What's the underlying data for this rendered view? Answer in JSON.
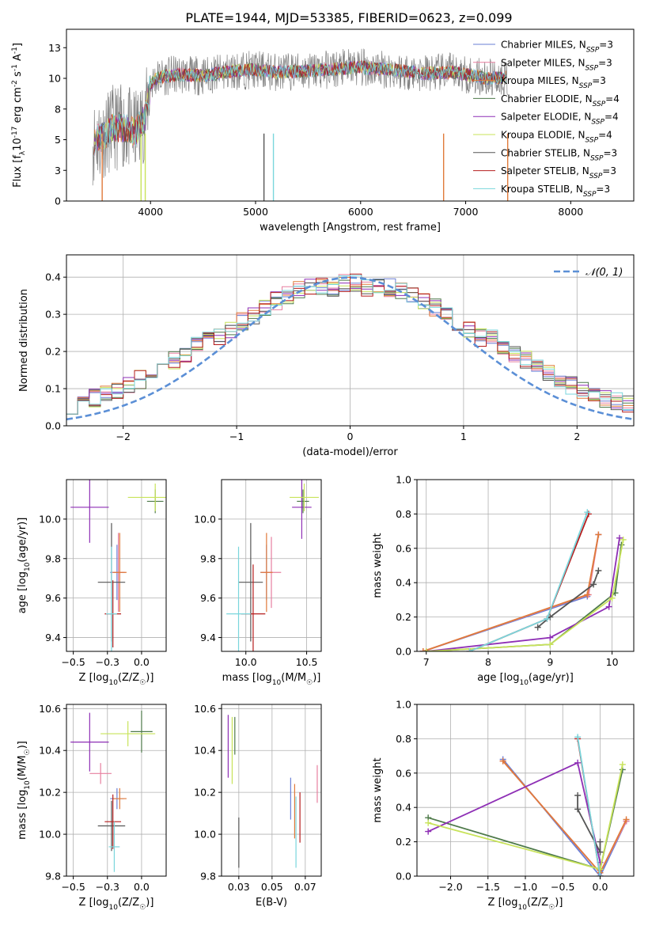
{
  "figure_title": "PLATE=1944, MJD=53385, FIBERID=0623, z=0.099",
  "colors": {
    "Chabrier MILES": "#6a7fd6",
    "Salpeter MILES": "#e77f9f",
    "Kroupa MILES": "#e07a3a",
    "Chabrier ELODIE": "#4e7a4a",
    "Salpeter ELODIE": "#8e2fb5",
    "Kroupa ELODIE": "#c8e35a",
    "Chabrier STELIB": "#555555",
    "Salpeter STELIB": "#b51d1d",
    "Kroupa STELIB": "#7ad6dc",
    "gray_spectrum": "#808080",
    "normal_curve": "#5b8fd6",
    "grid": "#b0b0b0"
  },
  "chart_data": [
    {
      "id": "spectrum",
      "type": "line",
      "xlabel": "wavelength [Angstrom, rest frame]",
      "ylabel": "Flux [f_λ10^-17 erg cm^-2 s^-1 A^-1]",
      "xlim": [
        3200,
        8600
      ],
      "ylim": [
        0,
        14
      ],
      "xticks": [
        4000,
        5000,
        6000,
        7000,
        8000
      ],
      "yticks": [
        0.0,
        2.5,
        5.0,
        7.5,
        10.0,
        12.5
      ],
      "grid": false,
      "legend": "right",
      "envelope": {
        "x": [
          3450,
          3550,
          3650,
          3750,
          3850,
          3950,
          4000,
          4050,
          4150,
          4300,
          4500,
          4800,
          5000,
          5200,
          5500,
          5800,
          6000,
          6300,
          6600,
          6900,
          7200,
          7400
        ],
        "y": [
          4.8,
          5.3,
          6.0,
          6.0,
          5.6,
          6.8,
          9.5,
          10.0,
          10.2,
          10.3,
          10.2,
          10.6,
          10.7,
          10.5,
          10.6,
          10.8,
          10.9,
          10.7,
          10.4,
          10.5,
          10.0,
          10.1
        ]
      },
      "series": [
        {
          "name": "Chabrier MILES, N_SSP=3"
        },
        {
          "name": "Salpeter MILES, N_SSP=3"
        },
        {
          "name": "Kroupa MILES, N_SSP=3"
        },
        {
          "name": "Chabrier ELODIE, N_SSP=4"
        },
        {
          "name": "Salpeter ELODIE, N_SSP=4"
        },
        {
          "name": "Kroupa ELODIE, N_SSP=4"
        },
        {
          "name": "Chabrier STELIB, N_SSP=3"
        },
        {
          "name": "Salpeter STELIB, N_SSP=3"
        },
        {
          "name": "Kroupa STELIB, N_SSP=3"
        }
      ]
    },
    {
      "id": "residuals",
      "type": "line",
      "xlabel": "(data-model)/error",
      "ylabel": "Normed distribution",
      "xlim": [
        -2.5,
        2.5
      ],
      "ylim": [
        0,
        0.46
      ],
      "xticks": [
        -2,
        -1,
        0,
        1,
        2
      ],
      "yticks": [
        0.0,
        0.1,
        0.2,
        0.3,
        0.4
      ],
      "grid": true,
      "legend": "top-right",
      "legend_label": "𝒩(0, 1)",
      "normal_curve": {
        "mean": 0,
        "sigma": 1
      }
    },
    {
      "id": "age_vs_Z",
      "type": "scatter",
      "xlabel": "Z [log10(Z/Z☉)]",
      "ylabel": "age [log10(age/yr)]",
      "xlim": [
        -0.55,
        0.18
      ],
      "ylim": [
        9.33,
        10.2
      ],
      "xticks": [
        -0.5,
        -0.25,
        0.0
      ],
      "yticks": [
        9.4,
        9.6,
        9.8,
        10.0
      ],
      "grid": true,
      "points": [
        {
          "model": "Chabrier MILES",
          "x": -0.18,
          "y": 9.73,
          "xerr": 0.05,
          "yerr": 0.14
        },
        {
          "model": "Salpeter MILES",
          "x": -0.17,
          "y": 9.73,
          "xerr": 0.05,
          "yerr": 0.2
        },
        {
          "model": "Kroupa MILES",
          "x": -0.16,
          "y": 9.73,
          "xerr": 0.05,
          "yerr": 0.2
        },
        {
          "model": "Chabrier ELODIE",
          "x": 0.1,
          "y": 10.09,
          "xerr": 0.06,
          "yerr": 0.06
        },
        {
          "model": "Salpeter ELODIE",
          "x": -0.38,
          "y": 10.06,
          "xerr": 0.14,
          "yerr": 0.18
        },
        {
          "model": "Kroupa ELODIE",
          "x": 0.1,
          "y": 10.11,
          "xerr": 0.2,
          "yerr": 0.07
        },
        {
          "model": "Chabrier STELIB",
          "x": -0.22,
          "y": 9.68,
          "xerr": 0.1,
          "yerr": 0.3
        },
        {
          "model": "Salpeter STELIB",
          "x": -0.21,
          "y": 9.52,
          "xerr": 0.06,
          "yerr": 0.17
        },
        {
          "model": "Kroupa STELIB",
          "x": -0.22,
          "y": 9.52,
          "xerr": 0.04,
          "yerr": 0.34
        }
      ]
    },
    {
      "id": "age_vs_mass",
      "type": "scatter",
      "xlabel": "mass [log10(M/M☉)]",
      "ylabel": "",
      "xlim": [
        9.8,
        10.62
      ],
      "ylim": [
        9.33,
        10.2
      ],
      "xticks": [
        10.0,
        10.5
      ],
      "yticks": [
        9.4,
        9.6,
        9.8,
        10.0
      ],
      "grid": true,
      "points": [
        {
          "model": "Chabrier MILES",
          "x": 10.17,
          "y": 9.73,
          "xerr": 0.05,
          "yerr": 0.14
        },
        {
          "model": "Salpeter MILES",
          "x": 10.21,
          "y": 9.73,
          "xerr": 0.08,
          "yerr": 0.18
        },
        {
          "model": "Kroupa MILES",
          "x": 10.17,
          "y": 9.73,
          "xerr": 0.05,
          "yerr": 0.2
        },
        {
          "model": "Chabrier ELODIE",
          "x": 10.47,
          "y": 10.09,
          "xerr": 0.05,
          "yerr": 0.06
        },
        {
          "model": "Salpeter ELODIE",
          "x": 10.46,
          "y": 10.06,
          "xerr": 0.08,
          "yerr": 0.16
        },
        {
          "model": "Kroupa ELODIE",
          "x": 10.48,
          "y": 10.11,
          "xerr": 0.12,
          "yerr": 0.07
        },
        {
          "model": "Chabrier STELIB",
          "x": 10.04,
          "y": 9.68,
          "xerr": 0.1,
          "yerr": 0.3
        },
        {
          "model": "Salpeter STELIB",
          "x": 10.06,
          "y": 9.52,
          "xerr": 0.1,
          "yerr": 0.25
        },
        {
          "model": "Kroupa STELIB",
          "x": 9.94,
          "y": 9.52,
          "xerr": 0.1,
          "yerr": 0.34
        }
      ]
    },
    {
      "id": "mass_weight_vs_age",
      "type": "line",
      "xlabel": "age [log10(age/yr)]",
      "ylabel": "mass weight",
      "xlim": [
        6.85,
        10.35
      ],
      "ylim": [
        0,
        1.0
      ],
      "xticks": [
        7,
        8,
        9,
        10
      ],
      "yticks": [
        0.0,
        0.2,
        0.4,
        0.6,
        0.8,
        1.0
      ],
      "grid": true,
      "series": [
        {
          "model": "Chabrier MILES",
          "points": [
            [
              6.95,
              0.0
            ],
            [
              9.6,
              0.32
            ],
            [
              9.78,
              0.68
            ]
          ]
        },
        {
          "model": "Salpeter MILES",
          "points": [
            [
              6.95,
              0.0
            ],
            [
              9.62,
              0.33
            ],
            [
              9.78,
              0.68
            ]
          ]
        },
        {
          "model": "Kroupa MILES",
          "points": [
            [
              6.95,
              0.0
            ],
            [
              9.6,
              0.33
            ],
            [
              9.78,
              0.68
            ]
          ]
        },
        {
          "model": "Chabrier ELODIE",
          "points": [
            [
              7.0,
              0.0
            ],
            [
              9.0,
              0.04
            ],
            [
              10.05,
              0.34
            ],
            [
              10.15,
              0.62
            ]
          ]
        },
        {
          "model": "Salpeter ELODIE",
          "points": [
            [
              7.0,
              0.0
            ],
            [
              9.0,
              0.08
            ],
            [
              9.95,
              0.26
            ],
            [
              10.12,
              0.66
            ]
          ]
        },
        {
          "model": "Kroupa ELODIE",
          "points": [
            [
              7.0,
              0.0
            ],
            [
              9.0,
              0.04
            ],
            [
              10.0,
              0.31
            ],
            [
              10.18,
              0.65
            ]
          ]
        },
        {
          "model": "Chabrier STELIB",
          "points": [
            [
              8.8,
              0.14
            ],
            [
              9.0,
              0.2
            ],
            [
              9.7,
              0.39
            ],
            [
              9.78,
              0.47
            ]
          ]
        },
        {
          "model": "Salpeter STELIB",
          "points": [
            [
              7.7,
              0.0
            ],
            [
              8.95,
              0.19
            ],
            [
              9.62,
              0.8
            ]
          ]
        },
        {
          "model": "Kroupa STELIB",
          "points": [
            [
              7.7,
              0.0
            ],
            [
              8.95,
              0.19
            ],
            [
              9.6,
              0.81
            ]
          ]
        }
      ]
    },
    {
      "id": "mass_vs_Z",
      "type": "scatter",
      "xlabel": "Z [log10(Z/Z☉)]",
      "ylabel": "mass [log10(M/M☉)]",
      "xlim": [
        -0.55,
        0.18
      ],
      "ylim": [
        9.8,
        10.62
      ],
      "xticks": [
        -0.5,
        -0.25,
        0.0
      ],
      "yticks": [
        9.8,
        10.0,
        10.2,
        10.4,
        10.6
      ],
      "grid": true,
      "points": [
        {
          "model": "Chabrier MILES",
          "x": -0.18,
          "y": 10.17,
          "xerr": 0.05,
          "yerr": 0.05
        },
        {
          "model": "Salpeter MILES",
          "x": -0.3,
          "y": 10.29,
          "xerr": 0.08,
          "yerr": 0.05
        },
        {
          "model": "Kroupa MILES",
          "x": -0.16,
          "y": 10.17,
          "xerr": 0.05,
          "yerr": 0.05
        },
        {
          "model": "Chabrier ELODIE",
          "x": 0.0,
          "y": 10.49,
          "xerr": 0.08,
          "yerr": 0.1
        },
        {
          "model": "Salpeter ELODIE",
          "x": -0.38,
          "y": 10.44,
          "xerr": 0.14,
          "yerr": 0.14
        },
        {
          "model": "Kroupa ELODIE",
          "x": -0.1,
          "y": 10.48,
          "xerr": 0.2,
          "yerr": 0.06
        },
        {
          "model": "Chabrier STELIB",
          "x": -0.22,
          "y": 10.04,
          "xerr": 0.1,
          "yerr": 0.12
        },
        {
          "model": "Salpeter STELIB",
          "x": -0.21,
          "y": 10.06,
          "xerr": 0.06,
          "yerr": 0.13
        },
        {
          "model": "Kroupa STELIB",
          "x": -0.2,
          "y": 9.94,
          "xerr": 0.04,
          "yerr": 0.12
        }
      ]
    },
    {
      "id": "mass_vs_EBV",
      "type": "scatter",
      "xlabel": "E(B-V)",
      "ylabel": "",
      "xlim": [
        0.012,
        0.087
      ],
      "ylim": [
        9.8,
        10.62
      ],
      "xticks": [
        0.025,
        0.05,
        0.075
      ],
      "yticks": [
        9.8,
        10.0,
        10.2,
        10.4,
        10.6
      ],
      "grid": true,
      "points": [
        {
          "model": "Chabrier MILES",
          "x": 0.064,
          "y": 10.17,
          "yerr": 0.1
        },
        {
          "model": "Salpeter MILES",
          "x": 0.084,
          "y": 10.24,
          "yerr": 0.09
        },
        {
          "model": "Kroupa MILES",
          "x": 0.067,
          "y": 10.11,
          "yerr": 0.13
        },
        {
          "model": "Chabrier ELODIE",
          "x": 0.022,
          "y": 10.47,
          "yerr": 0.09
        },
        {
          "model": "Salpeter ELODIE",
          "x": 0.017,
          "y": 10.42,
          "yerr": 0.15
        },
        {
          "model": "Kroupa ELODIE",
          "x": 0.02,
          "y": 10.4,
          "yerr": 0.16
        },
        {
          "model": "Chabrier STELIB",
          "x": 0.025,
          "y": 9.96,
          "yerr": 0.12
        },
        {
          "model": "Salpeter STELIB",
          "x": 0.071,
          "y": 10.08,
          "yerr": 0.12
        },
        {
          "model": "Kroupa STELIB",
          "x": 0.068,
          "y": 10.01,
          "yerr": 0.17
        }
      ]
    },
    {
      "id": "mass_weight_vs_Z",
      "type": "line",
      "xlabel": "Z [log10(Z/Z☉)]",
      "ylabel": "mass weight",
      "xlim": [
        -2.45,
        0.45
      ],
      "ylim": [
        0,
        1.0
      ],
      "xticks": [
        -2.0,
        -1.5,
        -1.0,
        -0.5,
        0.0
      ],
      "yticks": [
        0.0,
        0.2,
        0.4,
        0.6,
        0.8,
        1.0
      ],
      "grid": true,
      "series": [
        {
          "model": "Chabrier MILES",
          "points": [
            [
              -1.3,
              0.68
            ],
            [
              0.0,
              0.0
            ],
            [
              0.35,
              0.32
            ]
          ]
        },
        {
          "model": "Salpeter MILES",
          "points": [
            [
              -1.3,
              0.67
            ],
            [
              0.0,
              0.02
            ],
            [
              0.35,
              0.32
            ]
          ]
        },
        {
          "model": "Kroupa MILES",
          "points": [
            [
              -1.3,
              0.67
            ],
            [
              0.0,
              0.02
            ],
            [
              0.35,
              0.33
            ]
          ]
        },
        {
          "model": "Chabrier ELODIE",
          "points": [
            [
              -2.3,
              0.34
            ],
            [
              0.0,
              0.04
            ],
            [
              0.3,
              0.62
            ]
          ]
        },
        {
          "model": "Salpeter ELODIE",
          "points": [
            [
              -2.3,
              0.26
            ],
            [
              -0.3,
              0.66
            ],
            [
              0.0,
              0.08
            ]
          ]
        },
        {
          "model": "Kroupa ELODIE",
          "points": [
            [
              -2.3,
              0.31
            ],
            [
              0.0,
              0.04
            ],
            [
              0.3,
              0.65
            ]
          ]
        },
        {
          "model": "Chabrier STELIB",
          "points": [
            [
              -0.3,
              0.47
            ],
            [
              -0.3,
              0.39
            ],
            [
              0.0,
              0.14
            ],
            [
              0.0,
              0.2
            ]
          ]
        },
        {
          "model": "Salpeter STELIB",
          "points": [
            [
              -0.3,
              0.8
            ],
            [
              0.0,
              0.0
            ]
          ]
        },
        {
          "model": "Kroupa STELIB",
          "points": [
            [
              -0.3,
              0.81
            ],
            [
              0.0,
              0.0
            ]
          ]
        }
      ]
    }
  ]
}
